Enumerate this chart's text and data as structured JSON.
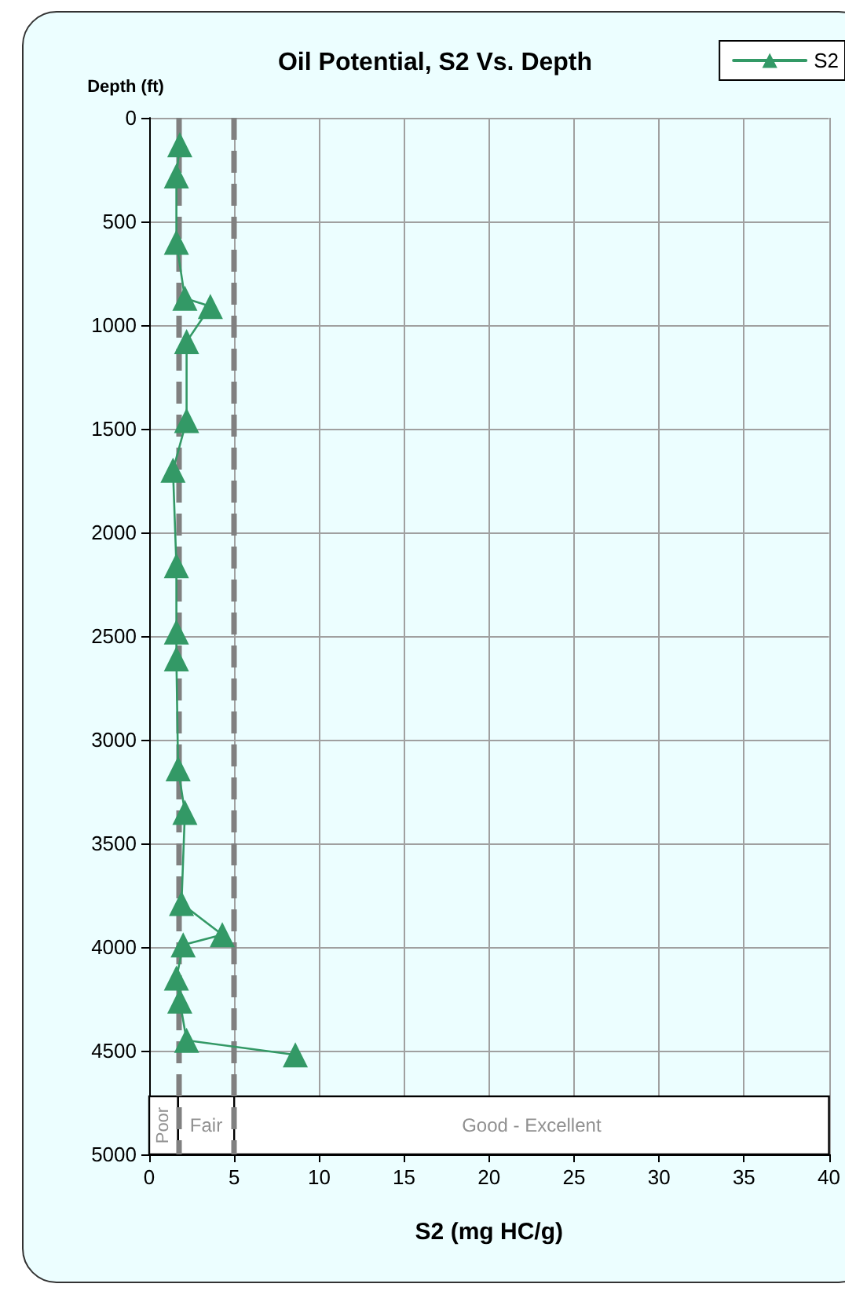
{
  "chart_data": {
    "type": "line",
    "title": "Oil Potential, S2 Vs. Depth",
    "xlabel": "S2 (mg HC/g)",
    "ylabel": "Depth (ft)",
    "x": [
      1.8,
      1.6,
      1.6,
      2.1,
      3.6,
      2.2,
      2.2,
      1.4,
      1.6,
      1.6,
      1.6,
      1.7,
      2.1,
      1.9,
      4.3,
      2.0,
      1.6,
      1.8,
      2.2,
      8.6
    ],
    "series": [
      {
        "name": "S2",
        "color": "#339966",
        "values": [
          130,
          280,
          600,
          870,
          910,
          1080,
          1460,
          1700,
          2160,
          2480,
          2610,
          3140,
          3350,
          3790,
          3940,
          3990,
          4150,
          4260,
          4450,
          4520
        ]
      }
    ],
    "xlim": [
      0,
      40
    ],
    "xticks": [
      0,
      5,
      10,
      15,
      20,
      25,
      30,
      35,
      40
    ],
    "ylim": [
      5000,
      0
    ],
    "yticks": [
      0,
      500,
      1000,
      1500,
      2000,
      2500,
      3000,
      3500,
      4000,
      4500,
      5000
    ],
    "ref_lines": [
      {
        "axis": "x",
        "value": 1.7,
        "color": "#808080",
        "line_style": "dashed"
      },
      {
        "axis": "x",
        "value": 5,
        "color": "#808080",
        "line_style": "dashed"
      }
    ],
    "bands": [
      {
        "axis": "x",
        "from": 0,
        "to": 1.7,
        "label": "Poor",
        "color": "#ffffff"
      },
      {
        "axis": "x",
        "from": 1.7,
        "to": 5,
        "label": "Fair",
        "color": "#ffffff"
      },
      {
        "axis": "x",
        "from": 5,
        "to": 40,
        "label": "Good - Excellent",
        "color": "#ffffff"
      }
    ],
    "grid": true,
    "legend": "top right",
    "marker": "triangle",
    "line_style": "solid"
  }
}
